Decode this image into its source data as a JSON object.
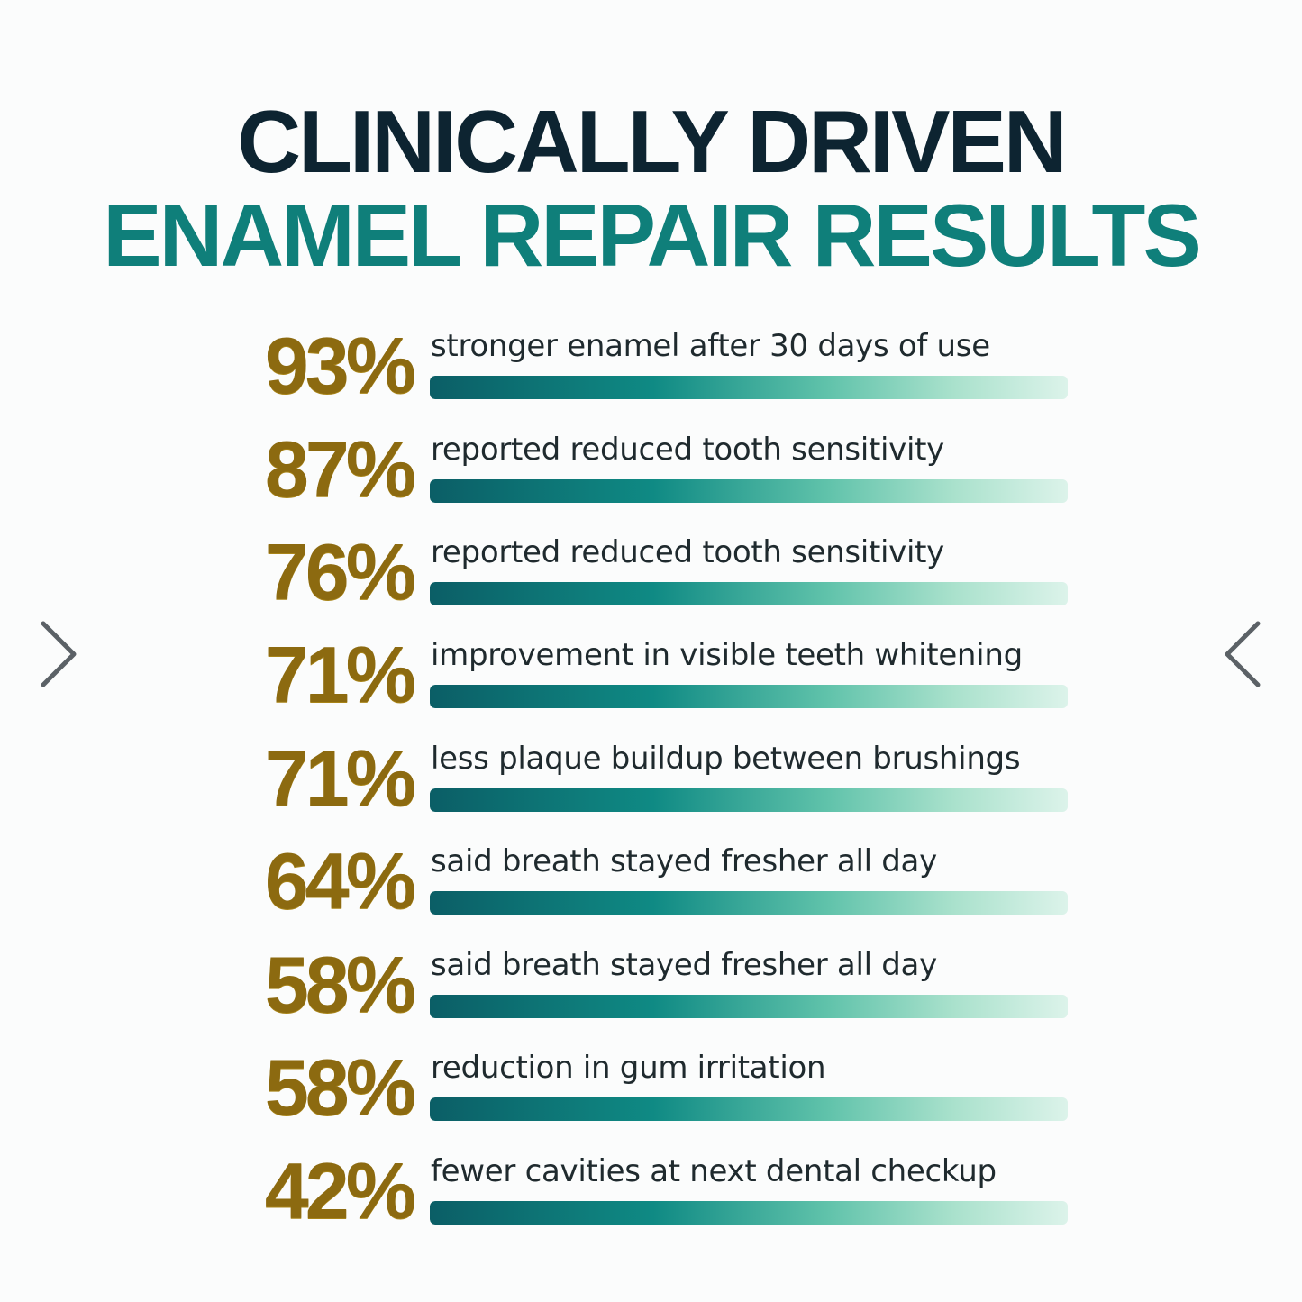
{
  "header": {
    "title_line1": "CLINICALLY DRIVEN",
    "title_line2": "ENAMEL REPAIR RESULTS"
  },
  "stats": [
    {
      "value": "93%",
      "fraction": 0.93,
      "label": "stronger enamel after 30 days of use"
    },
    {
      "value": "87%",
      "fraction": 0.87,
      "label": "reported reduced tooth sensitivity"
    },
    {
      "value": "76%",
      "fraction": 0.76,
      "label": "reported reduced tooth sensitivity"
    },
    {
      "value": "71%",
      "fraction": 0.71,
      "label": "improvement in visible teeth whitening"
    },
    {
      "value": "71%",
      "fraction": 0.71,
      "label": "less plaque buildup between brushings"
    },
    {
      "value": "64%",
      "fraction": 0.64,
      "label": "said breath stayed fresher all day"
    },
    {
      "value": "58%",
      "fraction": 0.58,
      "label": "said breath stayed fresher all day"
    },
    {
      "value": "58%",
      "fraction": 0.58,
      "label": "reduction in gum irritation"
    },
    {
      "value": "42%",
      "fraction": 0.42,
      "label": "fewer cavities at next dental checkup"
    }
  ],
  "navigation": {
    "prev_icon": "chevron-right-icon",
    "next_icon": "chevron-left-icon"
  },
  "colors": {
    "title_dark": "#0d2431",
    "title_teal": "#0f7f7a",
    "percent_gold": "#8c6a10",
    "bar_dark": "#0b5e66",
    "bar_light": "#dcf3ea"
  }
}
